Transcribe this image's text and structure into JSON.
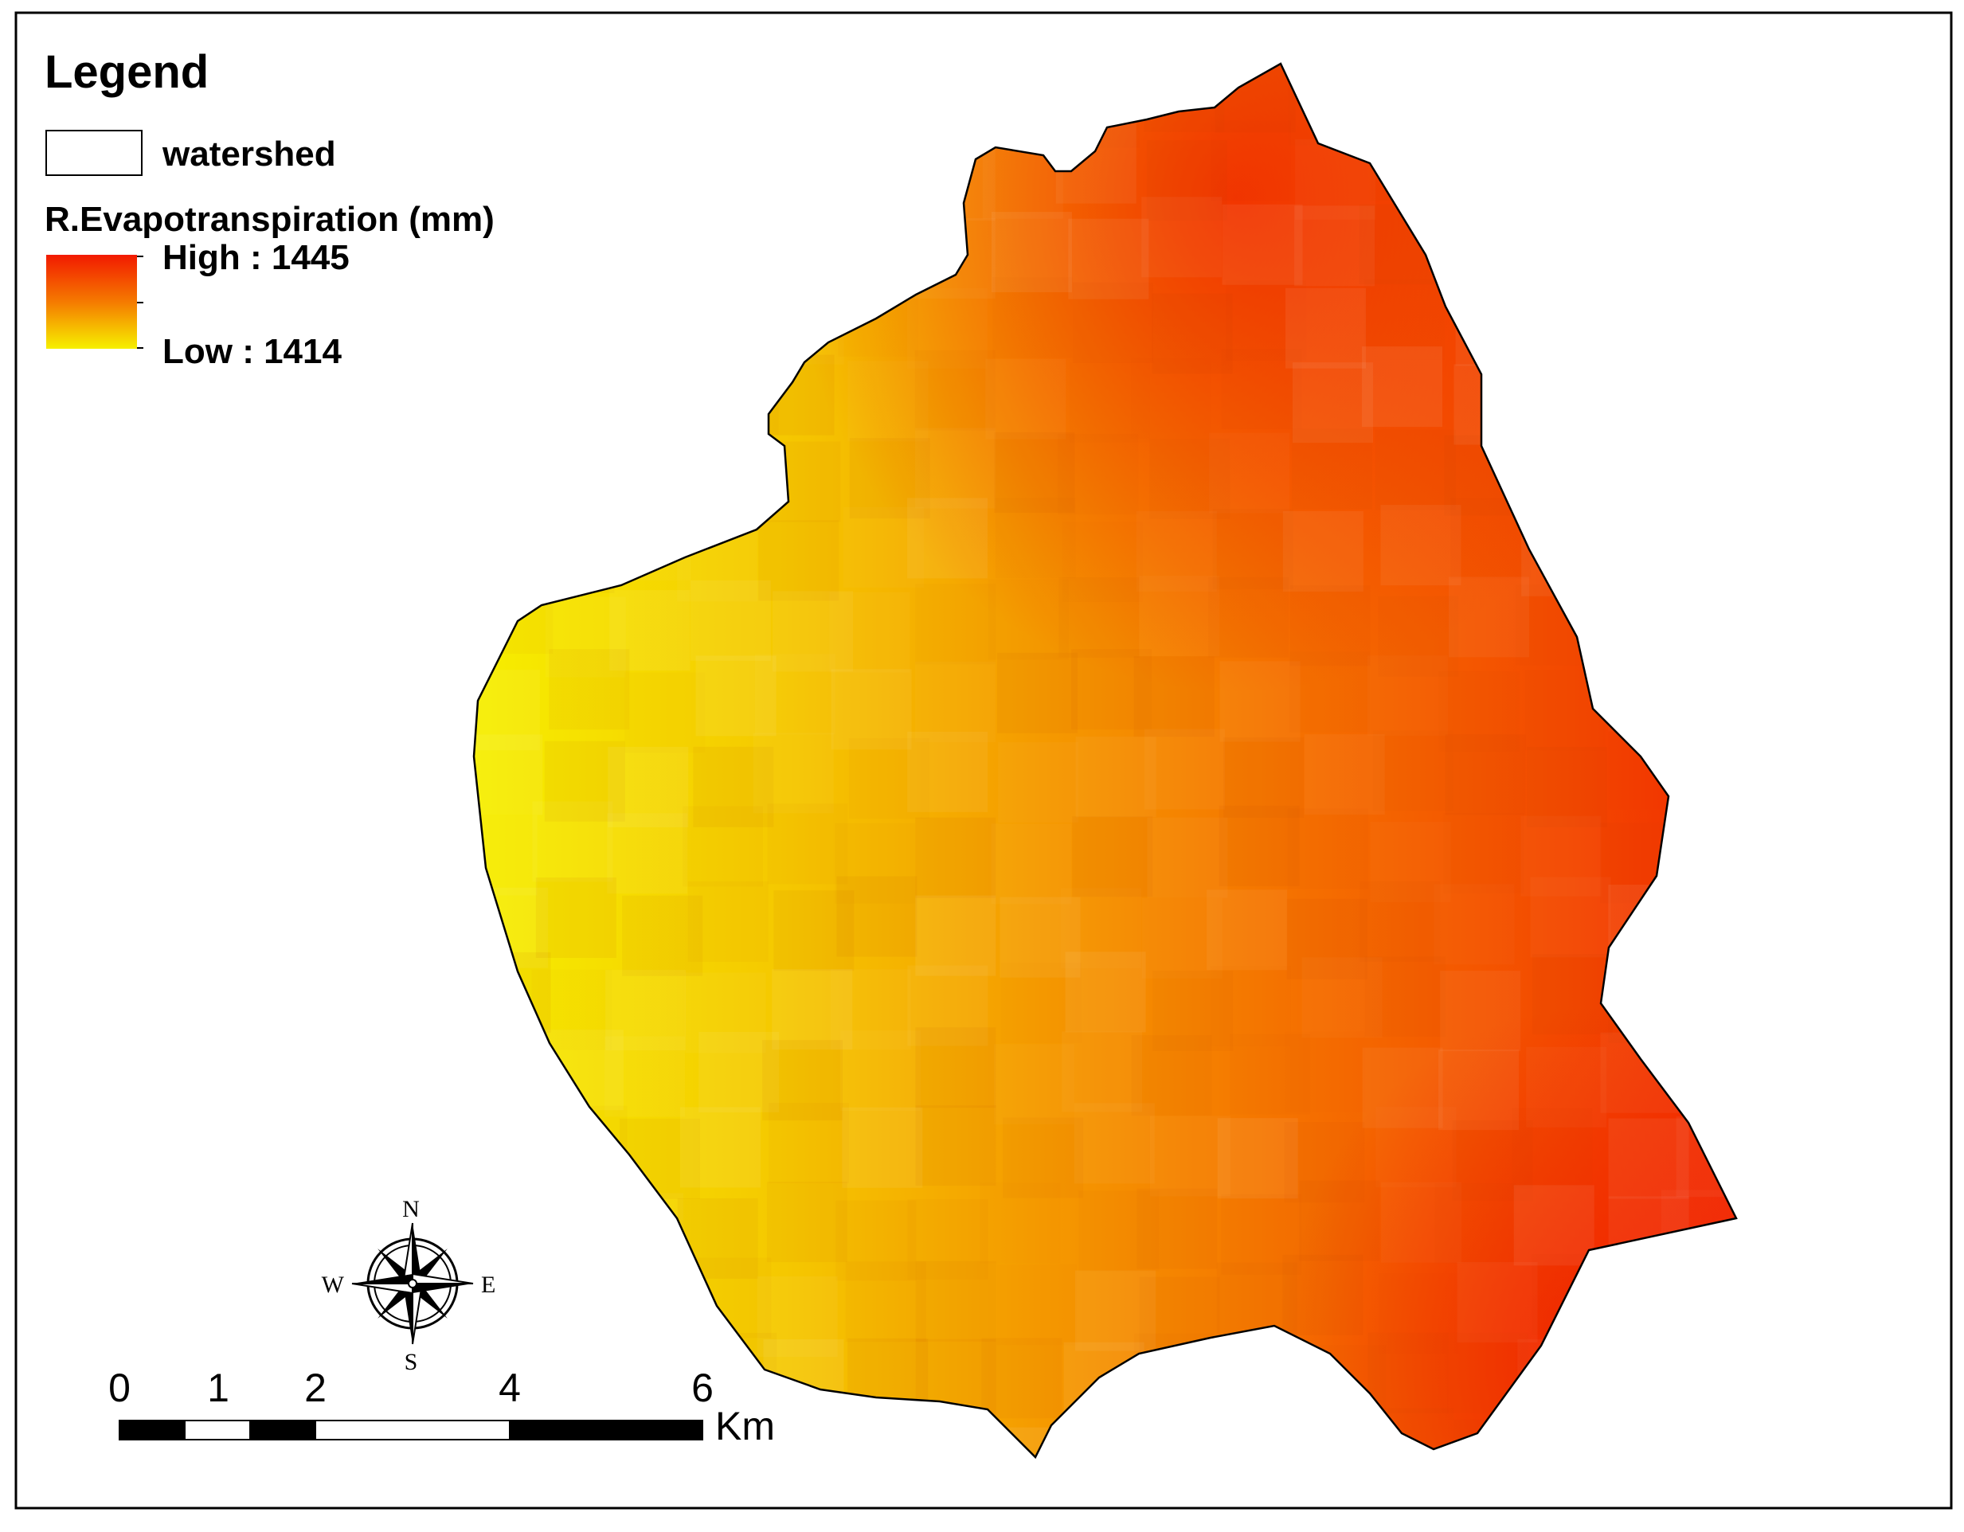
{
  "legend": {
    "title": "Legend",
    "watershed_label": "watershed",
    "raster_title": "R.Evapotranspiration (mm)",
    "high_label": "High : 1445",
    "low_label": "Low : 1414",
    "high_value": 1445,
    "low_value": 1414,
    "high_color": "#f21a00",
    "mid_color": "#f57a00",
    "low_color": "#f5f500"
  },
  "compass": {
    "north": "N",
    "south": "S",
    "east": "E",
    "west": "W",
    "icon": "north-arrow-compass-rose-icon"
  },
  "scale_bar": {
    "ticks": [
      "0",
      "1",
      "2",
      "4",
      "6"
    ],
    "unit": "Km"
  },
  "map": {
    "layer": "watershed",
    "gradient_direction": "west-low to east-high",
    "outline_color": "#000000"
  }
}
